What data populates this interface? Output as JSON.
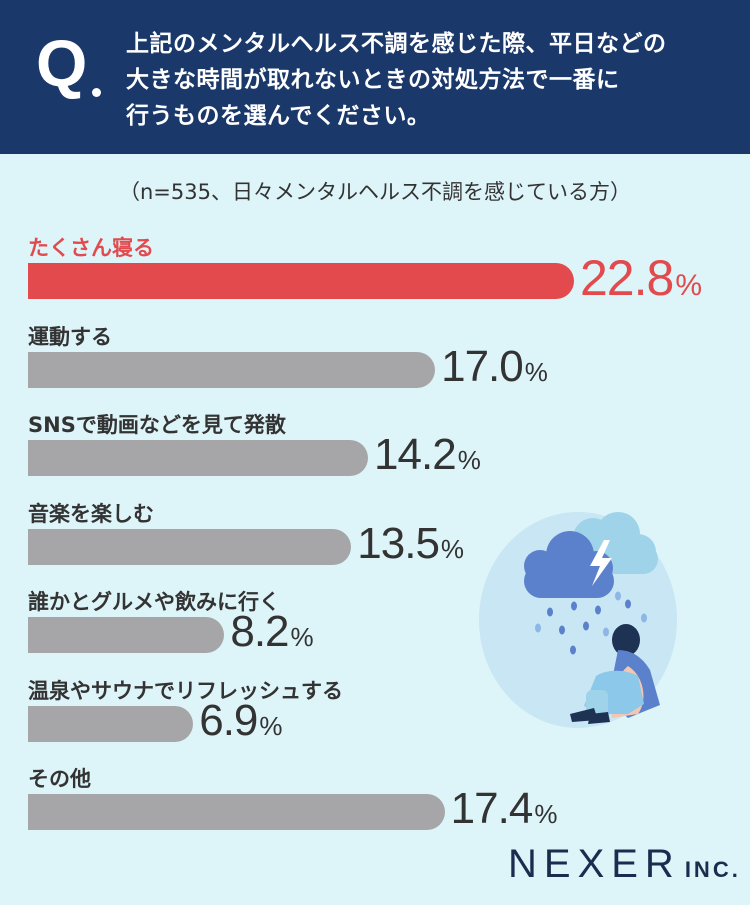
{
  "header": {
    "q_mark": "Q",
    "question_lines": [
      "上記のメンタルヘルス不調を感じた際、平日などの",
      "大きな時間が取れないときの対処方法で一番に",
      "行うものを選んでください。"
    ]
  },
  "note": "（n=535、日々メンタルヘルス不調を感じている方）",
  "percent_sign": "%",
  "colors": {
    "highlight": "#e24a4d",
    "bar": "#a6a6a8",
    "header": "#1b386b",
    "background": "#ddf4f9"
  },
  "chart_data": {
    "type": "bar",
    "orientation": "horizontal",
    "categories": [
      "たくさん寝る",
      "運動する",
      "SNSで動画などを見て発散",
      "音楽を楽しむ",
      "誰かとグルメや飲みに行く",
      "温泉やサウナでリフレッシュする",
      "その他"
    ],
    "values": [
      22.8,
      17.0,
      14.2,
      13.5,
      8.2,
      6.9,
      17.4
    ],
    "value_labels": [
      "22.8",
      "17.0",
      "14.2",
      "13.5",
      "8.2",
      "6.9",
      "17.4"
    ],
    "unit": "%",
    "highlight_index": 0
  },
  "logo": {
    "name": "NEXER",
    "suffix": "INC."
  }
}
